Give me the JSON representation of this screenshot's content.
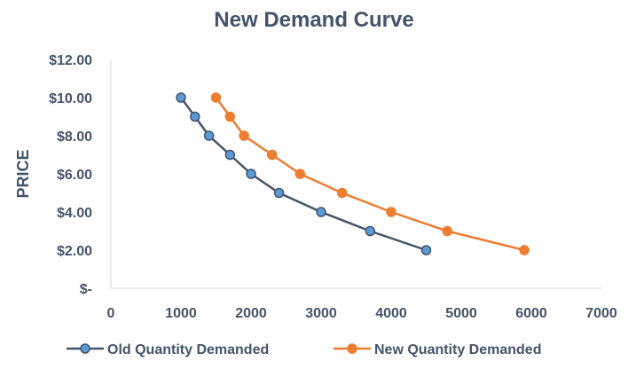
{
  "chart_data": {
    "type": "line",
    "title": "New Demand Curve",
    "xlabel": "",
    "ylabel": "PRICE",
    "xlim": [
      0,
      7000
    ],
    "ylim": [
      0,
      12
    ],
    "x_ticks": [
      "0",
      "1000",
      "2000",
      "3000",
      "4000",
      "5000",
      "6000",
      "7000"
    ],
    "x_tick_values": [
      0,
      1000,
      2000,
      3000,
      4000,
      5000,
      6000,
      7000
    ],
    "y_ticks": [
      "$-",
      "$2.00",
      "$4.00",
      "$6.00",
      "$8.00",
      "$10.00",
      "$12.00"
    ],
    "y_tick_values": [
      0,
      2,
      4,
      6,
      8,
      10,
      12
    ],
    "grid": false,
    "legend_position": "bottom",
    "series": [
      {
        "name": "Old Quantity Demanded",
        "line_color": "#44546A",
        "marker_color": "#5B9BD5",
        "x": [
          1000,
          1200,
          1400,
          1700,
          2000,
          2400,
          3000,
          3700,
          4500
        ],
        "y": [
          10,
          9,
          8,
          7,
          6,
          5,
          4,
          3,
          2
        ]
      },
      {
        "name": "New Quantity Demanded",
        "line_color": "#ED7D31",
        "marker_color": "#ED7D31",
        "x": [
          1500,
          1700,
          1900,
          2300,
          2700,
          3300,
          4000,
          4800,
          5900
        ],
        "y": [
          10,
          9,
          8,
          7,
          6,
          5,
          4,
          3,
          2
        ]
      }
    ]
  }
}
